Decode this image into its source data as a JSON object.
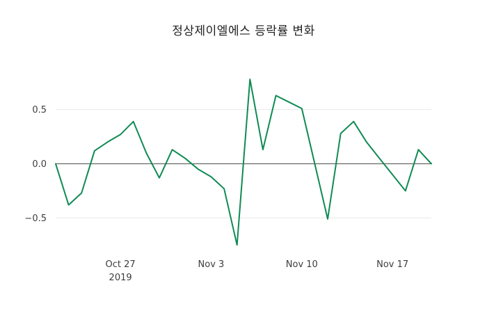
{
  "chart_data": {
    "type": "line",
    "title": "정상제이엘에스 등락률 변화",
    "xlabel": "",
    "ylabel": "",
    "legend": "none",
    "grid": "horizontal-only",
    "background": "#ffffff",
    "grid_color": "#e8e8e8",
    "zero_line": true,
    "zero_line_color": "#4d4d4d",
    "tick_label_color": "#3d3d3d",
    "ylim": [
      -0.8,
      0.87
    ],
    "y_ticks": [
      0.5,
      0,
      -0.5
    ],
    "x": [
      "Oct 22",
      "Oct 23",
      "Oct 24",
      "Oct 25",
      "Oct 26",
      "Oct 27",
      "Oct 28",
      "Oct 29",
      "Oct 30",
      "Oct 31",
      "Nov 1",
      "Nov 2",
      "Nov 3",
      "Nov 4",
      "Nov 5",
      "Nov 6",
      "Nov 7",
      "Nov 8",
      "Nov 9",
      "Nov 10",
      "Nov 11",
      "Nov 12",
      "Nov 13",
      "Nov 14",
      "Nov 15",
      "Nov 16",
      "Nov 17",
      "Nov 18",
      "Nov 19",
      "Nov 20"
    ],
    "x_ticks": [
      {
        "index": 5,
        "label": "Oct 27",
        "sublabel": "2019"
      },
      {
        "index": 12,
        "label": "Nov 3",
        "sublabel": ""
      },
      {
        "index": 19,
        "label": "Nov 10",
        "sublabel": ""
      },
      {
        "index": 26,
        "label": "Nov 17",
        "sublabel": ""
      }
    ],
    "series": [
      {
        "name": "등락률",
        "color": "#0f8a54",
        "values": [
          0.0,
          -0.38,
          -0.27,
          0.12,
          0.2,
          0.27,
          0.39,
          0.1,
          -0.13,
          0.13,
          0.05,
          -0.05,
          -0.12,
          -0.23,
          -0.75,
          0.78,
          0.13,
          0.63,
          0.57,
          0.51,
          0.0,
          -0.51,
          0.28,
          0.39,
          0.2,
          0.05,
          -0.1,
          -0.25,
          0.13,
          0.0
        ]
      }
    ]
  }
}
